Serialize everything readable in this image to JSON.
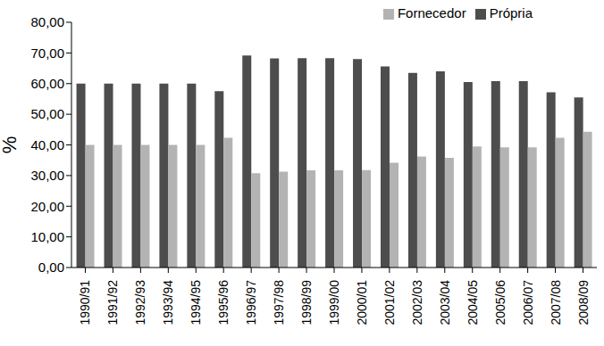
{
  "chart_data": {
    "type": "bar",
    "ylabel": "%",
    "categories": [
      "1990/91",
      "1991/92",
      "1992/93",
      "1993/94",
      "1994/95",
      "1995/96",
      "1996/97",
      "1997/98",
      "1998/99",
      "1999/00",
      "2000/01",
      "2001/02",
      "2002/03",
      "2003/04",
      "2004/05",
      "2005/06",
      "2006/07",
      "2007/08",
      "2008/09"
    ],
    "series": [
      {
        "name": "Própria",
        "color": "#4d4d4d",
        "values": [
          60,
          60,
          60,
          60,
          60,
          57.5,
          69.2,
          68.2,
          68.3,
          68.3,
          68,
          65.6,
          63.5,
          64,
          60.5,
          60.8,
          60.8,
          57.2,
          55.5
        ]
      },
      {
        "name": "Fornecedor",
        "color": "#b3b3b3",
        "values": [
          40,
          40,
          40,
          40,
          40,
          42.3,
          30.8,
          31.3,
          31.7,
          31.7,
          31.8,
          34.2,
          36.2,
          35.8,
          39.5,
          39.2,
          39.2,
          42.3,
          44.3
        ]
      }
    ],
    "ylim": [
      0,
      80
    ],
    "yticks": [
      {
        "value": 0,
        "label": "0,00"
      },
      {
        "value": 10,
        "label": "10,00"
      },
      {
        "value": 20,
        "label": "20,00"
      },
      {
        "value": 30,
        "label": "30,00"
      },
      {
        "value": 40,
        "label": "40,00"
      },
      {
        "value": 50,
        "label": "50,00"
      },
      {
        "value": 60,
        "label": "60,00"
      },
      {
        "value": 70,
        "label": "70,00"
      },
      {
        "value": 80,
        "label": "80,00"
      }
    ],
    "grid": false,
    "legend": "upper right"
  }
}
